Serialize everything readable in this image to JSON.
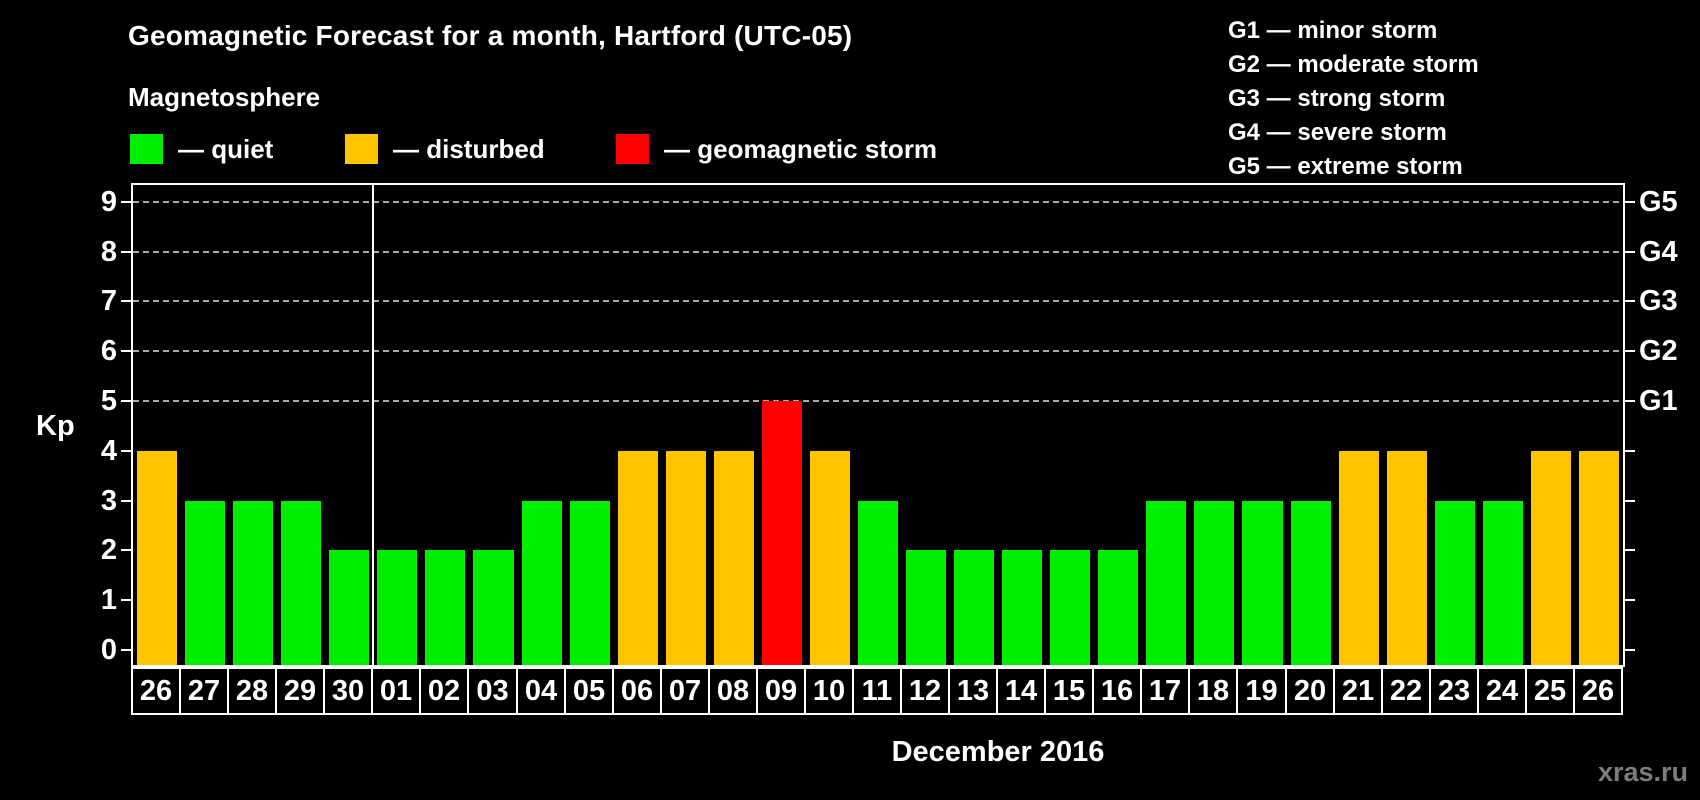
{
  "title": "Geomagnetic Forecast for a month, Hartford (UTC-05)",
  "subtitle": "Magnetosphere",
  "legend": [
    {
      "name": "quiet",
      "label": "— quiet",
      "color": "#00ee00"
    },
    {
      "name": "disturbed",
      "label": "— disturbed",
      "color": "#ffc300"
    },
    {
      "name": "storm",
      "label": "— geomagnetic storm",
      "color": "#ff0000"
    }
  ],
  "g_legend": [
    "G1 — minor storm",
    "G2 — moderate storm",
    "G3 — strong storm",
    "G4 — severe storm",
    "G5 — extreme storm"
  ],
  "axes": {
    "y_label": "Kp",
    "y_ticks": [
      0,
      1,
      2,
      3,
      4,
      5,
      6,
      7,
      8,
      9
    ],
    "y_tick_labels_shown": [
      9,
      8,
      7,
      6,
      5,
      4,
      3,
      2,
      1,
      0
    ],
    "right_labels": [
      {
        "label": "G5",
        "kp": 9
      },
      {
        "label": "G4",
        "kp": 8
      },
      {
        "label": "G3",
        "kp": 7
      },
      {
        "label": "G2",
        "kp": 6
      },
      {
        "label": "G1",
        "kp": 5
      }
    ],
    "grid_levels": [
      5,
      6,
      7,
      8,
      9
    ]
  },
  "x_label": "December 2016",
  "watermark": "xras.ru",
  "chart_data": {
    "type": "bar",
    "title": "Geomagnetic Forecast for a month, Hartford (UTC-05)",
    "xlabel": "December 2016",
    "ylabel": "Kp",
    "ylim": [
      0,
      9
    ],
    "grid": "dashed horizontal at Kp 5-9",
    "legend_position": "top",
    "categories": [
      "26",
      "27",
      "28",
      "29",
      "30",
      "01",
      "02",
      "03",
      "04",
      "05",
      "06",
      "07",
      "08",
      "09",
      "10",
      "11",
      "12",
      "13",
      "14",
      "15",
      "16",
      "17",
      "18",
      "19",
      "20",
      "21",
      "22",
      "23",
      "24",
      "25",
      "26"
    ],
    "values": [
      4,
      3,
      3,
      3,
      2,
      2,
      2,
      2,
      3,
      3,
      4,
      4,
      4,
      5,
      4,
      3,
      2,
      2,
      2,
      2,
      2,
      3,
      3,
      3,
      3,
      4,
      4,
      3,
      3,
      4,
      4
    ],
    "states": [
      "disturbed",
      "quiet",
      "quiet",
      "quiet",
      "quiet",
      "quiet",
      "quiet",
      "quiet",
      "quiet",
      "quiet",
      "disturbed",
      "disturbed",
      "disturbed",
      "storm",
      "disturbed",
      "quiet",
      "quiet",
      "quiet",
      "quiet",
      "quiet",
      "quiet",
      "quiet",
      "quiet",
      "quiet",
      "quiet",
      "disturbed",
      "disturbed",
      "quiet",
      "quiet",
      "disturbed",
      "disturbed"
    ],
    "month_boundary_after_index": 4
  }
}
